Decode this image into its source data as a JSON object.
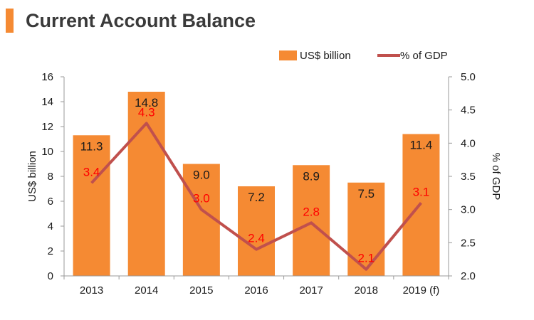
{
  "header": {
    "title": "Current Account Balance"
  },
  "colors": {
    "accent": "#f58a33",
    "bar": "#f58a33",
    "line": "#c0504d",
    "line_label": "#ff0000"
  },
  "chart_data": {
    "type": "bar",
    "categories": [
      "2013",
      "2014",
      "2015",
      "2016",
      "2017",
      "2018",
      "2019 (f)"
    ],
    "series": [
      {
        "name": "US$ billion",
        "type": "bar",
        "axis": "left",
        "values": [
          11.3,
          14.8,
          9.0,
          7.2,
          8.9,
          7.5,
          11.4
        ],
        "labels": [
          "11.3",
          "14.8",
          "9.0",
          "7.2",
          "8.9",
          "7.5",
          "11.4"
        ]
      },
      {
        "name": "% of GDP",
        "type": "line",
        "axis": "right",
        "values": [
          3.4,
          4.3,
          3.0,
          2.4,
          2.8,
          2.1,
          3.1
        ],
        "labels": [
          "3.4",
          "4.3",
          "3.0",
          "2.4",
          "2.8",
          "2.1",
          "3.1"
        ]
      }
    ],
    "ylabel": "US$ billion",
    "ylim": [
      0,
      16
    ],
    "yticks": [
      "0",
      "2",
      "4",
      "6",
      "8",
      "10",
      "12",
      "14",
      "16"
    ],
    "y2label": "% of GDP",
    "y2lim": [
      2.0,
      5.0
    ],
    "y2ticks": [
      "2.0",
      "2.5",
      "3.0",
      "3.5",
      "4.0",
      "4.5",
      "5.0"
    ],
    "legend": "top-right",
    "grid": false
  }
}
